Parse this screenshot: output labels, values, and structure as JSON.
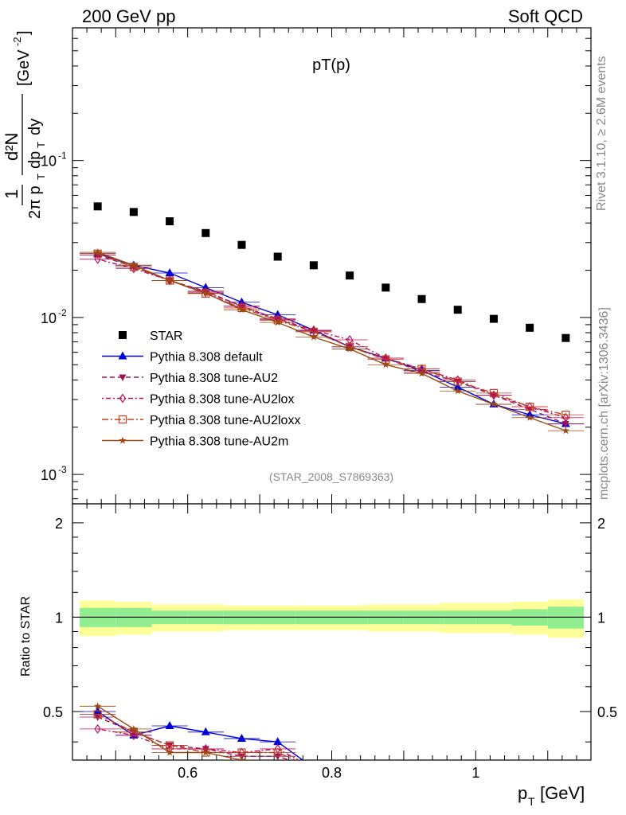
{
  "header": {
    "left": "200 GeV pp",
    "right": "Soft QCD"
  },
  "side": {
    "rivet": "Rivet 3.1.10, ≥ 2.6M events",
    "mcplots": "mcplots.cern.ch [arXiv:1306.3436]"
  },
  "chart_data": [
    {
      "type": "scatter",
      "title": "pT(p)",
      "subtitle": "(STAR_2008_S7869363)",
      "ylabel": "1/(2π pT) d²N/(dpT dy) [GeV^-2]",
      "xlabel": "pT [GeV]",
      "yscale": "log",
      "xlim": [
        0.44,
        1.16
      ],
      "ylim": [
        0.00065,
        0.7
      ],
      "ytick_labels": [
        "10^-3",
        "10^-2",
        "10^-1"
      ],
      "legend_position": "lower-left",
      "x": [
        0.475,
        0.525,
        0.575,
        0.625,
        0.675,
        0.725,
        0.775,
        0.825,
        0.875,
        0.925,
        0.975,
        1.025,
        1.075,
        1.125
      ],
      "series": [
        {
          "name": "STAR",
          "color": "#000000",
          "marker": "square",
          "values": [
            0.051,
            0.047,
            0.041,
            0.0345,
            0.029,
            0.0244,
            0.0215,
            0.0185,
            0.0155,
            0.0131,
            0.0112,
            0.0098,
            0.0086,
            0.0074
          ]
        },
        {
          "name": "Pythia 8.308 default",
          "color": "#0000dd",
          "marker": "triangle-up",
          "dash": "",
          "values": [
            0.0255,
            0.0215,
            0.0192,
            0.0155,
            0.0125,
            0.0104,
            0.0083,
            0.0065,
            0.0055,
            0.0046,
            0.0036,
            0.0028,
            0.0024,
            0.0021
          ]
        },
        {
          "name": "Pythia 8.308 tune-AU2",
          "color": "#a01050",
          "marker": "triangle-down",
          "dash": "6,4",
          "values": [
            0.025,
            0.021,
            0.0172,
            0.0147,
            0.0118,
            0.0097,
            0.0082,
            0.0065,
            0.0055,
            0.0045,
            0.0039,
            0.0032,
            0.0026,
            0.0021
          ]
        },
        {
          "name": "Pythia 8.308 tune-AU2lox",
          "color": "#c01060",
          "marker": "diamond-open",
          "dash": "2,3,6,3",
          "values": [
            0.0235,
            0.0205,
            0.0172,
            0.0145,
            0.0118,
            0.0098,
            0.0083,
            0.0072,
            0.0055,
            0.0047,
            0.004,
            0.0032,
            0.0027,
            0.0023
          ]
        },
        {
          "name": "Pythia 8.308 tune-AU2loxx",
          "color": "#c04020",
          "marker": "square-open",
          "dash": "8,3,2,3",
          "values": [
            0.0255,
            0.021,
            0.0172,
            0.0142,
            0.0115,
            0.0096,
            0.0081,
            0.0065,
            0.0054,
            0.0047,
            0.0039,
            0.0033,
            0.0027,
            0.0024
          ]
        },
        {
          "name": "Pythia 8.308 tune-AU2m",
          "color": "#9a4a10",
          "marker": "star",
          "dash": "",
          "values": [
            0.026,
            0.0215,
            0.0172,
            0.0143,
            0.0112,
            0.0093,
            0.0075,
            0.0063,
            0.005,
            0.0044,
            0.0034,
            0.0028,
            0.0023,
            0.0019
          ]
        }
      ]
    },
    {
      "type": "line",
      "ylabel": "Ratio to STAR",
      "xlabel": "pT [GeV]",
      "xlim": [
        0.44,
        1.16
      ],
      "ylim": [
        0.35,
        2.3
      ],
      "yscale": "log",
      "xtick_labels": [
        "0.6",
        "0.8",
        "1"
      ],
      "ytick_labels": [
        "0.5",
        "1",
        "2"
      ],
      "x": [
        0.475,
        0.525,
        0.575,
        0.625,
        0.675,
        0.725,
        0.775
      ],
      "band_inner": [
        0.07,
        0.07,
        0.05,
        0.05,
        0.05,
        0.05,
        0.05,
        0.05,
        0.05,
        0.05,
        0.05,
        0.05,
        0.06,
        0.08
      ],
      "band_outer": [
        0.13,
        0.12,
        0.1,
        0.1,
        0.09,
        0.09,
        0.09,
        0.09,
        0.1,
        0.1,
        0.11,
        0.11,
        0.12,
        0.14
      ],
      "band_x": [
        0.475,
        0.525,
        0.575,
        0.625,
        0.675,
        0.725,
        0.775,
        0.825,
        0.875,
        0.925,
        0.975,
        1.025,
        1.075,
        1.125
      ],
      "series": [
        {
          "name": "Pythia 8.308 default",
          "color": "#0000dd",
          "marker": "triangle-up",
          "dash": "",
          "values": [
            0.5,
            0.42,
            0.45,
            0.43,
            0.41,
            0.4,
            0.33
          ]
        },
        {
          "name": "Pythia 8.308 tune-AU2",
          "color": "#a01050",
          "marker": "triangle-down",
          "dash": "6,4",
          "values": [
            0.48,
            0.43,
            0.39,
            0.38,
            0.36,
            0.36,
            0.33
          ]
        },
        {
          "name": "Pythia 8.308 tune-AU2lox",
          "color": "#c01060",
          "marker": "diamond-open",
          "dash": "2,3,6,3",
          "values": [
            0.44,
            0.42,
            0.38,
            0.38,
            0.37,
            0.38,
            0.33
          ]
        },
        {
          "name": "Pythia 8.308 tune-AU2loxx",
          "color": "#c04020",
          "marker": "square-open",
          "dash": "8,3,2,3",
          "values": [
            0.49,
            0.43,
            0.39,
            0.37,
            0.37,
            0.37,
            0.33
          ]
        },
        {
          "name": "Pythia 8.308 tune-AU2m",
          "color": "#9a4a10",
          "marker": "star",
          "dash": "",
          "values": [
            0.52,
            0.44,
            0.37,
            0.37,
            0.35,
            0.34,
            0.32
          ]
        }
      ]
    }
  ]
}
